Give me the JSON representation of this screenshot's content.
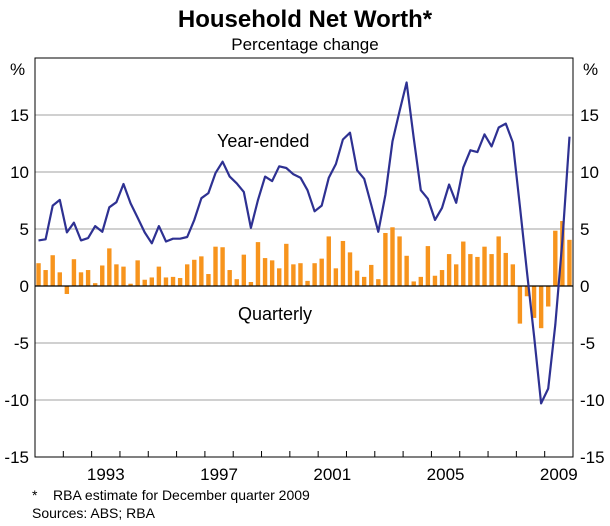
{
  "chart_data": {
    "type": "bar+line",
    "title": "Household Net Worth*",
    "subtitle": "Percentage change",
    "ylabel_left": "%",
    "ylabel_right": "%",
    "ylim": [
      -15,
      20
    ],
    "yticks": [
      15,
      10,
      5,
      0,
      -5,
      -10,
      -15
    ],
    "xlim": [
      1991.0,
      2010.0
    ],
    "xtick_labels": [
      "1993",
      "1997",
      "2001",
      "2005",
      "2009"
    ],
    "grid": true,
    "x_start_quarter": "1991 Q1",
    "x_end_quarter": "2009 Q4",
    "series": [
      {
        "name": "Year-ended",
        "type": "line",
        "color": "#2e3192",
        "values": [
          4.0,
          4.1,
          7.05,
          7.55,
          4.7,
          5.55,
          4.0,
          4.2,
          5.25,
          4.75,
          6.9,
          7.35,
          8.95,
          7.25,
          6.0,
          4.7,
          3.75,
          5.25,
          3.9,
          4.15,
          4.15,
          4.3,
          5.8,
          7.7,
          8.15,
          9.9,
          10.9,
          9.6,
          9.0,
          8.25,
          5.1,
          7.55,
          9.6,
          9.2,
          10.5,
          10.35,
          9.8,
          9.5,
          8.4,
          6.55,
          7.05,
          9.5,
          10.7,
          12.85,
          13.45,
          10.15,
          9.4,
          7.1,
          4.75,
          8.0,
          12.7,
          15.35,
          17.85,
          13.0,
          8.4,
          7.65,
          5.8,
          6.85,
          8.9,
          7.3,
          10.4,
          11.9,
          11.75,
          13.3,
          12.25,
          13.9,
          14.25,
          12.6,
          7.0,
          1.2,
          -4.4,
          -10.3,
          -9.0,
          -3.4,
          4.0,
          13.1
        ]
      },
      {
        "name": "Quarterly",
        "type": "bar",
        "color": "#f7941d",
        "values": [
          2.0,
          1.4,
          2.7,
          1.2,
          -0.7,
          2.35,
          1.2,
          1.4,
          0.25,
          1.8,
          3.3,
          1.9,
          1.7,
          0.2,
          2.25,
          0.55,
          0.75,
          1.7,
          0.75,
          0.8,
          0.7,
          1.9,
          2.3,
          2.6,
          1.05,
          3.45,
          3.4,
          1.4,
          0.6,
          2.75,
          0.35,
          3.85,
          2.45,
          2.25,
          1.55,
          3.7,
          1.9,
          2.0,
          0.45,
          2.0,
          2.4,
          4.35,
          1.55,
          3.95,
          2.95,
          1.35,
          0.8,
          1.85,
          0.6,
          4.65,
          5.15,
          4.35,
          2.65,
          0.4,
          0.8,
          3.5,
          0.9,
          1.4,
          2.8,
          1.9,
          3.9,
          2.8,
          2.55,
          3.45,
          2.8,
          4.35,
          2.9,
          1.9,
          -3.3,
          -0.9,
          -2.8,
          -3.7,
          -1.8,
          4.85,
          5.7,
          4.05
        ]
      }
    ],
    "footnotes": [
      "*    RBA estimate for December quarter 2009",
      "Sources: ABS; RBA"
    ]
  }
}
